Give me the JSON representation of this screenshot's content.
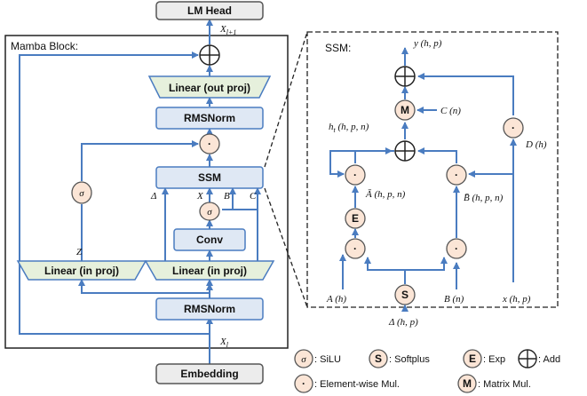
{
  "mamba": {
    "title": "Mamba Block:",
    "lm_head": "LM Head",
    "out_proj": "Linear (out proj)",
    "rmsnorm_top": "RMSNorm",
    "ssm": "SSM",
    "conv": "Conv",
    "in_proj_left": "Linear (in proj)",
    "in_proj_right": "Linear (in proj)",
    "rmsnorm_bottom": "RMSNorm",
    "embedding": "Embedding",
    "x_next": "X_{l+1}",
    "x_l": "X_l",
    "delta": "Δ",
    "ssm_x": "X",
    "ssm_b": "B",
    "ssm_c": "C",
    "z": "Z"
  },
  "ssm": {
    "title": "SSM:",
    "y": "y (h, p)",
    "c": "C (n)",
    "d": "D (h)",
    "h_t": "h_t (h, p, n)",
    "a_bar": "Ā (h, p, n)",
    "b_bar": "B̄ (h, p, n)",
    "a": "A (h)",
    "delta": "Δ (h, p)",
    "b": "B (n)",
    "x": "x (h, p)"
  },
  "symbols": {
    "sigma": "σ",
    "dot": "·",
    "softplus": "S",
    "exp": "E",
    "matmul": "M"
  },
  "legend": {
    "silu": ": SiLU",
    "softplus": ": Softplus",
    "exp": ": Exp",
    "add": ": Add",
    "elementwise": ": Element-wise Mul.",
    "matrix": ": Matrix Mul."
  }
}
